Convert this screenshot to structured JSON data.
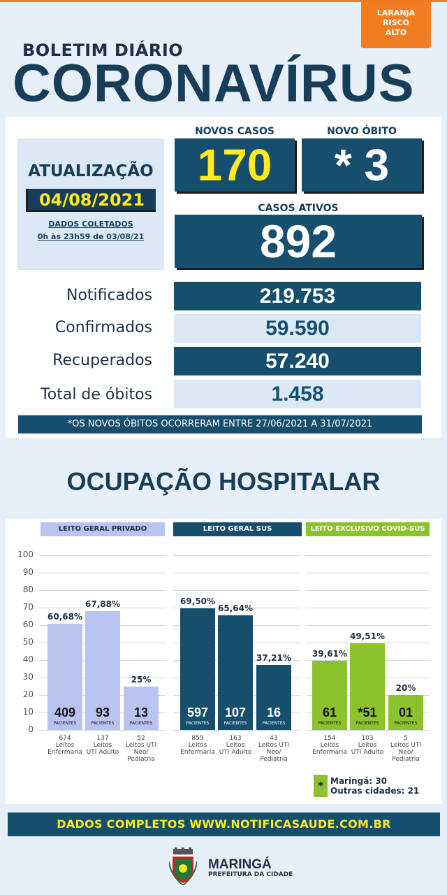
{
  "risk": {
    "line1": "LARANJA",
    "line2": "RISCO",
    "line3": "ALTO",
    "color": "#f27d21"
  },
  "header": {
    "subtitle": "BOLETIM DIÁRIO",
    "title": "CORONAVÍRUS"
  },
  "update": {
    "label": "ATUALIZAÇÃO",
    "date": "04/08/2021",
    "note1": "DADOS COLETADOS",
    "note2": "0h às 23h59 de 03/08/21"
  },
  "new_cases": {
    "label": "NOVOS CASOS",
    "value": "170"
  },
  "new_death": {
    "label": "NOVO ÓBITO",
    "value": "* 3"
  },
  "active_cases": {
    "label": "CASOS ATIVOS",
    "value": "892"
  },
  "stats": [
    {
      "label": "Notificados",
      "value": "219.753"
    },
    {
      "label": "Confirmados",
      "value": "59.590"
    },
    {
      "label": "Recuperados",
      "value": "57.240"
    },
    {
      "label": "Total de óbitos",
      "value": "1.458"
    }
  ],
  "footnote": "*OS NOVOS ÓBITOS OCORRERAM ENTRE 27/06/2021 A 31/07/2021",
  "hospital_title": "OCUPAÇÃO HOSPITALAR",
  "colors": {
    "dark": "#164f6e",
    "privado": "#b8c3f0",
    "covid": "#8cc22c",
    "yellow": "#ffec1f"
  },
  "chart_data": {
    "type": "bar",
    "ylim": [
      0,
      100
    ],
    "yticks": [
      "100",
      "90",
      "80",
      "70",
      "60",
      "50",
      "40",
      "30",
      "20",
      "10",
      "0"
    ],
    "patients_label": "PACIENTES",
    "groups": [
      {
        "name": "LEITO GERAL PRIVADO",
        "bars": [
          {
            "pct": 60.68,
            "pct_label": "60,68%",
            "patients": "409",
            "caption": [
              "674",
              "Leitos",
              "Enfermaria"
            ]
          },
          {
            "pct": 67.88,
            "pct_label": "67,88%",
            "patients": "93",
            "caption": [
              "137",
              "Leitos",
              "UTI Adulto"
            ]
          },
          {
            "pct": 25,
            "pct_label": "25%",
            "patients": "13",
            "caption": [
              "52",
              "Leitos UTI",
              "Neo/",
              "Pediatria"
            ]
          }
        ]
      },
      {
        "name": "LEITO GERAL SUS",
        "bars": [
          {
            "pct": 69.5,
            "pct_label": "69,50%",
            "patients": "597",
            "caption": [
              "859",
              "Leitos",
              "Enfermaria"
            ]
          },
          {
            "pct": 65.64,
            "pct_label": "65,64%",
            "patients": "107",
            "caption": [
              "163",
              "Leitos",
              "UTI Adulto"
            ]
          },
          {
            "pct": 37.21,
            "pct_label": "37,21%",
            "patients": "16",
            "caption": [
              "43",
              "Leitos UTI",
              "Neo/",
              "Pediatria"
            ]
          }
        ]
      },
      {
        "name": "LEITO EXCLUSIVO COVID-SUS",
        "bars": [
          {
            "pct": 39.61,
            "pct_label": "39,61%",
            "patients": "61",
            "caption": [
              "154",
              "Leitos",
              "Enfermaria"
            ]
          },
          {
            "pct": 49.51,
            "pct_label": "49,51%",
            "patients": "*51",
            "caption": [
              "103",
              "Leitos",
              "UTI Adulto"
            ]
          },
          {
            "pct": 20,
            "pct_label": "20%",
            "patients": "01",
            "caption": [
              "5",
              "Leitos UTI",
              "Neo/",
              "Pediatria"
            ]
          }
        ]
      }
    ]
  },
  "legend": {
    "marker": "*",
    "line1": "Maringá: 30",
    "line2": "Outras cidades: 21"
  },
  "bottom_banner": "DADOS COMPLETOS  WWW.NOTIFICASAUDE.COM.BR",
  "logo": {
    "city": "MARINGÁ",
    "subtitle": "PREFEITURA DA CIDADE",
    "icon": "city-coat-of-arms-icon"
  }
}
